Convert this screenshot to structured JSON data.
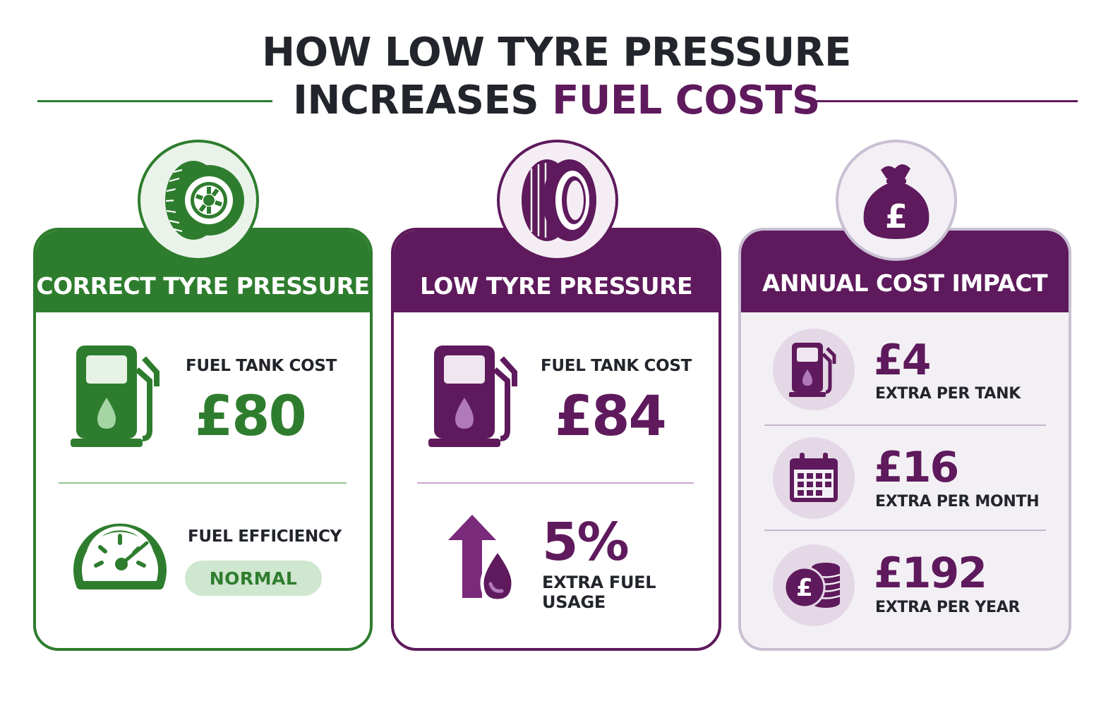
{
  "title": {
    "line1": "HOW LOW TYRE PRESSURE",
    "line2_prefix": "INCREASES ",
    "line2_accent": "FUEL COSTS"
  },
  "colors": {
    "green": "#2e7d2e",
    "purple": "#5e1a5c",
    "light_purple": "#e5d8e6",
    "light_green": "#cfe6cf",
    "text_dark": "#22252b"
  },
  "icons": {
    "correct": "tyre-wheel-icon",
    "low": "flat-tyre-icon",
    "annual": "money-bag-pound-icon"
  },
  "correct_pressure": {
    "heading": "CORRECT TYRE PRESSURE",
    "tank_label": "FUEL TANK COST",
    "tank_value": "£80",
    "efficiency_label": "FUEL EFFICIENCY",
    "efficiency_value": "NORMAL"
  },
  "low_pressure": {
    "heading": "LOW TYRE PRESSURE",
    "tank_label": "FUEL TANK COST",
    "tank_value": "£84",
    "extra_percent": "5%",
    "extra_label_line1": "EXTRA FUEL",
    "extra_label_line2": "USAGE"
  },
  "annual_impact": {
    "heading": "ANNUAL COST IMPACT",
    "rows": [
      {
        "value": "£4",
        "label": "EXTRA PER TANK",
        "icon": "fuel-pump-icon"
      },
      {
        "value": "£16",
        "label": "EXTRA PER MONTH",
        "icon": "calendar-icon"
      },
      {
        "value": "£192",
        "label": "EXTRA PER YEAR",
        "icon": "coins-icon"
      }
    ]
  }
}
